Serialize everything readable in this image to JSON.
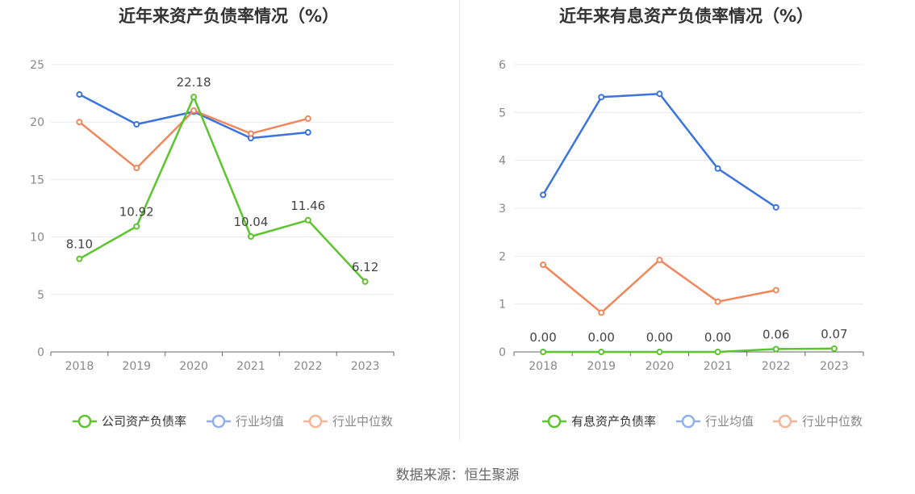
{
  "source": "数据来源：恒生聚源",
  "chart_data": [
    {
      "type": "line",
      "title": "近年来资产负债率情况（%）",
      "categories": [
        "2018",
        "2019",
        "2020",
        "2021",
        "2022",
        "2023"
      ],
      "ylim": [
        0,
        25
      ],
      "yticks": [
        0,
        5,
        10,
        15,
        20,
        25
      ],
      "grid": true,
      "legend": "bottom",
      "series": [
        {
          "name": "公司资产负债率",
          "color": "#5cc42c",
          "values": [
            8.1,
            10.92,
            22.18,
            10.04,
            11.46,
            6.12
          ],
          "labels": [
            "8.10",
            "10.92",
            "22.18",
            "10.04",
            "11.46",
            "6.12"
          ]
        },
        {
          "name": "行业均值",
          "color": "#3a74dc",
          "values": [
            22.4,
            19.8,
            20.9,
            18.6,
            19.1,
            null
          ]
        },
        {
          "name": "行业中位数",
          "color": "#f0875a",
          "values": [
            20.0,
            16.0,
            21.0,
            19.0,
            20.3,
            null
          ]
        }
      ]
    },
    {
      "type": "line",
      "title": "近年来有息资产负债率情况（%）",
      "categories": [
        "2018",
        "2019",
        "2020",
        "2021",
        "2022",
        "2023"
      ],
      "ylim": [
        0,
        6
      ],
      "yticks": [
        0,
        1,
        2,
        3,
        4,
        5,
        6
      ],
      "grid": true,
      "legend": "bottom",
      "series": [
        {
          "name": "有息资产负债率",
          "color": "#5cc42c",
          "values": [
            0.0,
            0.0,
            0.0,
            0.0,
            0.06,
            0.07
          ],
          "labels": [
            "0.00",
            "0.00",
            "0.00",
            "0.00",
            "0.06",
            "0.07"
          ]
        },
        {
          "name": "行业均值",
          "color": "#3a74dc",
          "values": [
            3.28,
            5.32,
            5.39,
            3.83,
            3.02,
            null
          ]
        },
        {
          "name": "行业中位数",
          "color": "#f0875a",
          "values": [
            1.82,
            0.82,
            1.92,
            1.05,
            1.29,
            null
          ]
        }
      ]
    }
  ]
}
